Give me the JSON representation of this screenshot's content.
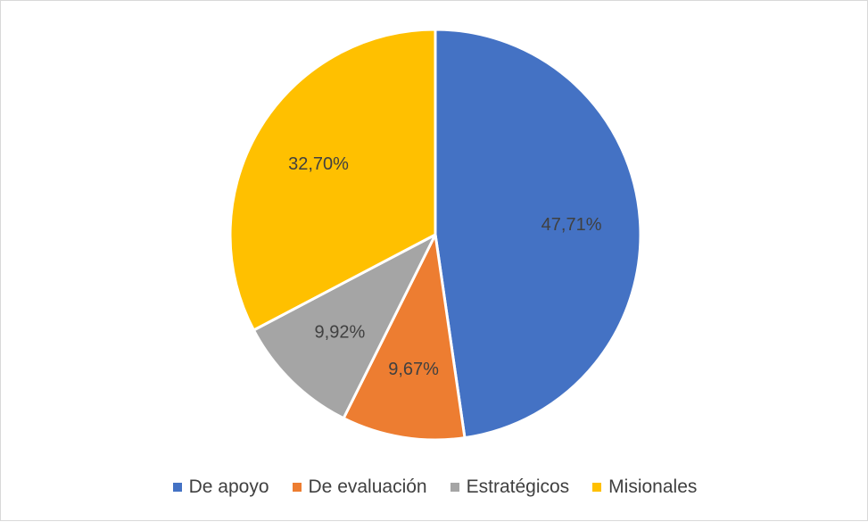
{
  "chart_data": {
    "type": "pie",
    "title": "",
    "start_angle_deg": 0,
    "direction": "clockwise",
    "legend_position": "bottom",
    "slices": [
      {
        "name": "De apoyo",
        "value": 47.71,
        "label": "47,71%",
        "color": "#4472C4"
      },
      {
        "name": "De evaluación",
        "value": 9.67,
        "label": "9,67%",
        "color": "#ED7D31"
      },
      {
        "name": "Estratégicos",
        "value": 9.92,
        "label": "9,92%",
        "color": "#A5A5A5"
      },
      {
        "name": "Misionales",
        "value": 32.7,
        "label": "32,70%",
        "color": "#FFC000"
      }
    ]
  }
}
